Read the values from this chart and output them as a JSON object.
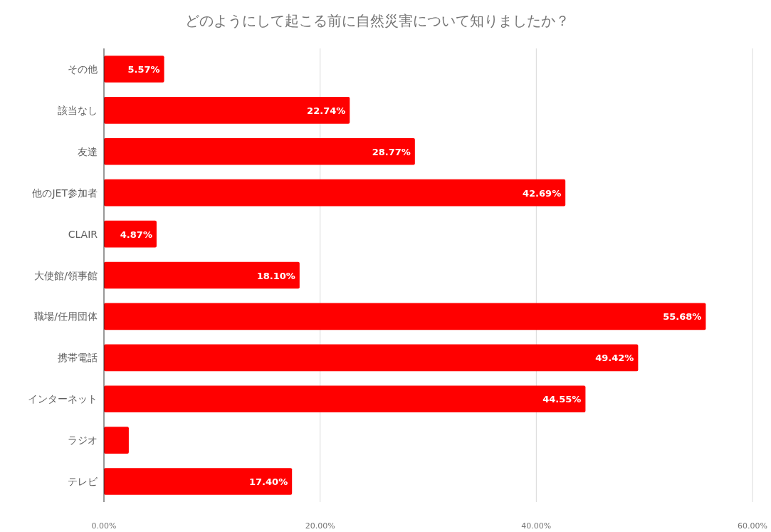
{
  "chart_data": {
    "type": "bar",
    "orientation": "horizontal",
    "title": "どのようにして起こる前に自然災害について知りましたか？",
    "categories": [
      "その他",
      "該当なし",
      "友達",
      "他のJET参加者",
      "CLAIR",
      "大使館/領事館",
      "職場/任用団体",
      "携帯電話",
      "インターネット",
      "ラジオ",
      "テレビ"
    ],
    "values": [
      5.57,
      22.74,
      28.77,
      42.69,
      4.87,
      18.1,
      55.68,
      49.42,
      44.55,
      2.3,
      17.4
    ],
    "value_labels": [
      "5.57%",
      "22.74%",
      "28.77%",
      "42.69%",
      "4.87%",
      "18.10%",
      "55.68%",
      "49.42%",
      "44.55%",
      null,
      "17.40%"
    ],
    "color": "#ff0000",
    "xlim": [
      0,
      60
    ],
    "xticks": [
      {
        "value": 0,
        "label": "0.00%"
      },
      {
        "value": 20,
        "label": "20.00%"
      },
      {
        "value": 40,
        "label": "40.00%"
      },
      {
        "value": 60,
        "label": "60.00%"
      }
    ],
    "grid": "x"
  }
}
